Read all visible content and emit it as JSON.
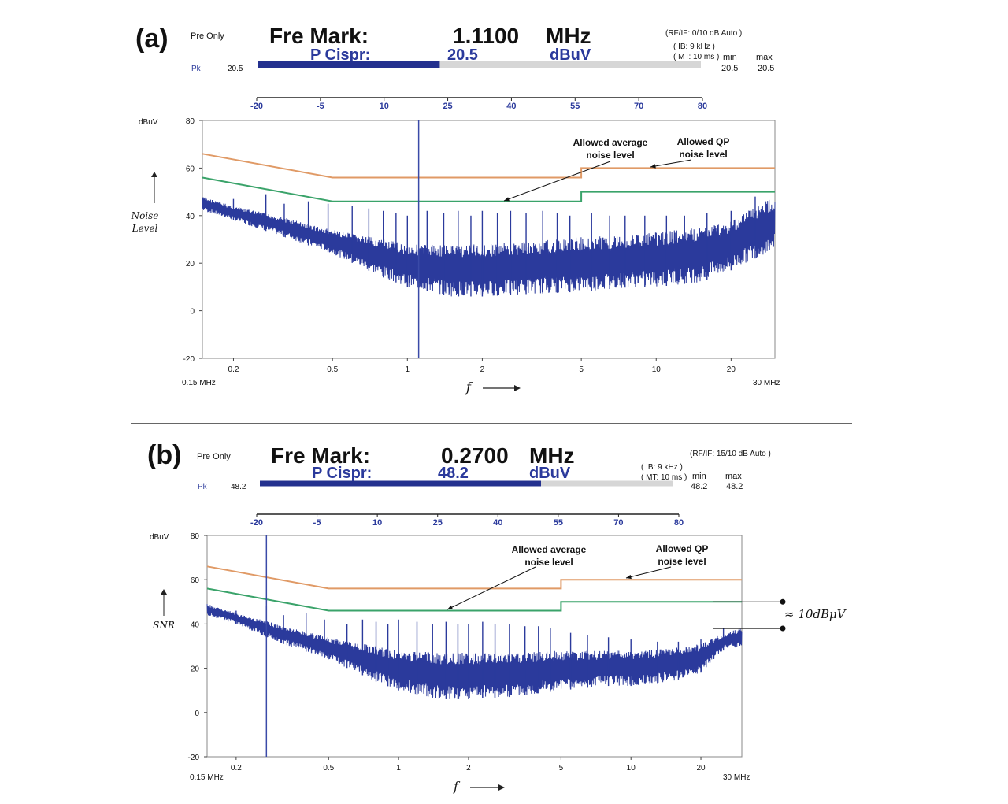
{
  "panels": [
    {
      "label": "(a)",
      "mode": "Pre Only",
      "marker_title": "Fre Mark:",
      "marker_freq": "1.1100",
      "marker_unit": "MHz",
      "detector": "P Cispr:",
      "detector_value": "20.5",
      "detector_unit": "dBuV",
      "settings": [
        "(RF/IF:  0/10  dB  Auto )",
        "( IB:   9 kHz  )",
        "( MT:  10 ms  )"
      ],
      "pk_label": "Pk",
      "pk_value": "20.5",
      "bar_fill_fraction": 0.41,
      "min_label": "min",
      "max_label": "max",
      "min_value": "20.5",
      "max_value": "20.5",
      "scale_ticks": [
        "-20",
        "-5",
        "10",
        "25",
        "40",
        "55",
        "70",
        "80"
      ],
      "y_unit": "dBuV",
      "y_label_lines": [
        "Noise",
        "Level"
      ],
      "x_symbol": "f",
      "x_start_label": "0.15 MHz",
      "x_end_label": "30 MHz",
      "annotations": [
        {
          "text": [
            "Allowed average",
            "noise level"
          ]
        },
        {
          "text": [
            "Allowed QP",
            "noise level"
          ]
        }
      ]
    },
    {
      "label": "(b)",
      "mode": "Pre Only",
      "marker_title": "Fre Mark:",
      "marker_freq": "0.2700",
      "marker_unit": "MHz",
      "detector": "P Cispr:",
      "detector_value": "48.2",
      "detector_unit": "dBuV",
      "settings": [
        "(RF/IF:  15/10  dB  Auto )",
        "( IB:   9 kHz  )",
        "( MT:  10 ms  )"
      ],
      "pk_label": "Pk",
      "pk_value": "48.2",
      "bar_fill_fraction": 0.68,
      "min_label": "min",
      "max_label": "max",
      "min_value": "48.2",
      "max_value": "48.2",
      "scale_ticks": [
        "-20",
        "-5",
        "10",
        "25",
        "40",
        "55",
        "70",
        "80"
      ],
      "y_unit": "dBuV",
      "y_label_lines": [
        "SNR"
      ],
      "x_symbol": "f",
      "x_start_label": "0.15 MHz",
      "x_end_label": "30 MHz",
      "annotations": [
        {
          "text": [
            "Allowed average",
            "noise level"
          ]
        },
        {
          "text": [
            "Allowed QP",
            "noise level"
          ]
        }
      ],
      "margin_label": "≈ 10dBμV"
    }
  ],
  "chart_data": [
    {
      "type": "line",
      "xscale": "log",
      "xlim": [
        0.15,
        30
      ],
      "ylim": [
        -20,
        80
      ],
      "x_ticks": [
        0.2,
        0.5,
        1,
        2,
        5,
        10,
        20
      ],
      "x_tick_labels": [
        "0.2",
        "0.5",
        "1",
        "2",
        "5",
        "10",
        "20"
      ],
      "y_ticks": [
        -20,
        0,
        20,
        40,
        60,
        80
      ],
      "y_tick_labels": [
        "-20",
        "0",
        "20",
        "40",
        "60",
        "80"
      ],
      "marker_x": 1.11,
      "series": [
        {
          "name": "Allowed QP noise level",
          "color": "#e09a66",
          "x": [
            0.15,
            0.5,
            5,
            5,
            30
          ],
          "y": [
            66,
            56,
            56,
            60,
            60
          ]
        },
        {
          "name": "Allowed average noise level",
          "color": "#3aa36a",
          "x": [
            0.15,
            0.5,
            5,
            5,
            30
          ],
          "y": [
            56,
            46,
            46,
            50,
            50
          ]
        }
      ],
      "measured": {
        "color": "#2b3a9c",
        "envelope_x": [
          0.15,
          0.2,
          0.3,
          0.5,
          0.8,
          1,
          1.5,
          2,
          3,
          5,
          8,
          10,
          15,
          20,
          25,
          30
        ],
        "envelope_top": [
          48,
          44,
          40,
          34,
          30,
          28,
          28,
          28,
          29,
          31,
          32,
          33,
          35,
          38,
          44,
          48
        ],
        "envelope_bottom": [
          42,
          38,
          32,
          24,
          14,
          10,
          6,
          6,
          7,
          8,
          10,
          10,
          12,
          17,
          22,
          26
        ],
        "spikes": [
          {
            "x": 0.2,
            "y": 47
          },
          {
            "x": 0.27,
            "y": 49
          },
          {
            "x": 0.32,
            "y": 45
          },
          {
            "x": 0.4,
            "y": 46
          },
          {
            "x": 0.48,
            "y": 45
          },
          {
            "x": 0.6,
            "y": 44
          },
          {
            "x": 0.7,
            "y": 43
          },
          {
            "x": 0.8,
            "y": 42
          },
          {
            "x": 0.9,
            "y": 41
          },
          {
            "x": 1.0,
            "y": 40
          },
          {
            "x": 1.2,
            "y": 42
          },
          {
            "x": 1.4,
            "y": 41
          },
          {
            "x": 1.6,
            "y": 42
          },
          {
            "x": 1.8,
            "y": 40
          },
          {
            "x": 2.0,
            "y": 42
          },
          {
            "x": 2.3,
            "y": 41
          },
          {
            "x": 2.6,
            "y": 42
          },
          {
            "x": 3.0,
            "y": 41
          },
          {
            "x": 3.5,
            "y": 42
          },
          {
            "x": 4.0,
            "y": 41
          },
          {
            "x": 4.5,
            "y": 40
          },
          {
            "x": 5.5,
            "y": 41
          },
          {
            "x": 6.5,
            "y": 40
          },
          {
            "x": 7.5,
            "y": 40
          },
          {
            "x": 9,
            "y": 40
          },
          {
            "x": 11,
            "y": 40
          },
          {
            "x": 13,
            "y": 40
          },
          {
            "x": 16,
            "y": 41
          },
          {
            "x": 20,
            "y": 42
          },
          {
            "x": 25,
            "y": 48
          }
        ]
      }
    },
    {
      "type": "line",
      "xscale": "log",
      "xlim": [
        0.15,
        30
      ],
      "ylim": [
        -20,
        80
      ],
      "x_ticks": [
        0.2,
        0.5,
        1,
        2,
        5,
        10,
        20
      ],
      "x_tick_labels": [
        "0.2",
        "0.5",
        "1",
        "2",
        "5",
        "10",
        "20"
      ],
      "y_ticks": [
        -20,
        0,
        20,
        40,
        60,
        80
      ],
      "y_tick_labels": [
        "-20",
        "0",
        "20",
        "40",
        "60",
        "80"
      ],
      "marker_x": 0.27,
      "series": [
        {
          "name": "Allowed QP noise level",
          "color": "#e09a66",
          "x": [
            0.15,
            0.5,
            5,
            5,
            30
          ],
          "y": [
            66,
            56,
            56,
            60,
            60
          ]
        },
        {
          "name": "Allowed average noise level",
          "color": "#3aa36a",
          "x": [
            0.15,
            0.5,
            5,
            5,
            30
          ],
          "y": [
            56,
            46,
            46,
            50,
            50
          ]
        }
      ],
      "measured": {
        "color": "#2b3a9c",
        "envelope_x": [
          0.15,
          0.2,
          0.3,
          0.5,
          0.8,
          1,
          1.5,
          2,
          3,
          5,
          8,
          10,
          15,
          20,
          25,
          30
        ],
        "envelope_top": [
          49,
          45,
          40,
          34,
          30,
          28,
          27,
          27,
          27,
          28,
          28,
          28,
          29,
          31,
          36,
          38
        ],
        "envelope_bottom": [
          44,
          40,
          32,
          24,
          14,
          10,
          6,
          6,
          7,
          10,
          12,
          12,
          14,
          18,
          28,
          30
        ],
        "spikes": [
          {
            "x": 0.2,
            "y": 46
          },
          {
            "x": 0.27,
            "y": 48
          },
          {
            "x": 0.32,
            "y": 44
          },
          {
            "x": 0.4,
            "y": 45
          },
          {
            "x": 0.48,
            "y": 42
          },
          {
            "x": 0.6,
            "y": 40
          },
          {
            "x": 0.7,
            "y": 42
          },
          {
            "x": 0.8,
            "y": 41
          },
          {
            "x": 0.9,
            "y": 40
          },
          {
            "x": 1.0,
            "y": 42
          },
          {
            "x": 1.2,
            "y": 41
          },
          {
            "x": 1.4,
            "y": 40
          },
          {
            "x": 1.6,
            "y": 41
          },
          {
            "x": 1.8,
            "y": 40
          },
          {
            "x": 2.0,
            "y": 40
          },
          {
            "x": 2.3,
            "y": 41
          },
          {
            "x": 2.6,
            "y": 40
          },
          {
            "x": 3.0,
            "y": 40
          },
          {
            "x": 3.5,
            "y": 39
          },
          {
            "x": 4.0,
            "y": 39
          },
          {
            "x": 4.5,
            "y": 38
          },
          {
            "x": 5.5,
            "y": 36
          },
          {
            "x": 6.5,
            "y": 35
          },
          {
            "x": 8,
            "y": 34
          },
          {
            "x": 10,
            "y": 33
          },
          {
            "x": 13,
            "y": 32
          },
          {
            "x": 16,
            "y": 32
          },
          {
            "x": 20,
            "y": 33
          },
          {
            "x": 25,
            "y": 38
          }
        ]
      }
    }
  ]
}
